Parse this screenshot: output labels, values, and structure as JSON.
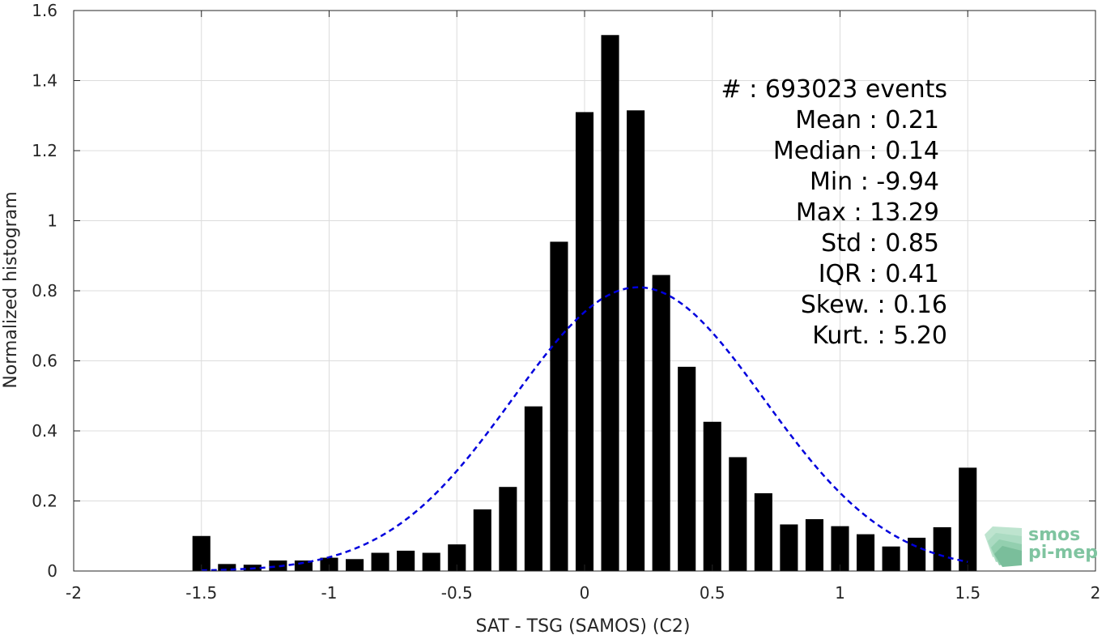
{
  "chart_data": {
    "type": "bar",
    "xlabel": "SAT - TSG (SAMOS) (C2)",
    "ylabel": "Normalized histogram",
    "xlim": [
      -2,
      2
    ],
    "ylim": [
      0,
      1.6
    ],
    "xticks": [
      "-2",
      "-1.5",
      "-1",
      "-0.5",
      "0",
      "0.5",
      "1",
      "1.5",
      "2"
    ],
    "yticks": [
      "0",
      "0.2",
      "0.4",
      "0.6",
      "0.8",
      "1",
      "1.2",
      "1.4",
      "1.6"
    ],
    "grid": true,
    "bin_width": 0.1,
    "bins": {
      "x": [
        -1.5,
        -1.4,
        -1.3,
        -1.2,
        -1.1,
        -1.0,
        -0.9,
        -0.8,
        -0.7,
        -0.6,
        -0.5,
        -0.4,
        -0.3,
        -0.2,
        -0.1,
        0.0,
        0.1,
        0.2,
        0.3,
        0.4,
        0.5,
        0.6,
        0.7,
        0.8,
        0.9,
        1.0,
        1.1,
        1.2,
        1.3,
        1.4,
        1.5
      ],
      "values": [
        0.1,
        0.02,
        0.018,
        0.03,
        0.03,
        0.038,
        0.034,
        0.052,
        0.058,
        0.052,
        0.076,
        0.176,
        0.24,
        0.47,
        0.94,
        1.31,
        1.53,
        1.315,
        0.845,
        0.583,
        0.426,
        0.325,
        0.222,
        0.133,
        0.148,
        0.128,
        0.105,
        0.07,
        0.095,
        0.125,
        0.295
      ]
    },
    "fit_curve": {
      "style": "dashed",
      "color": "#0000dd",
      "mean": 0.21,
      "std": 0.492,
      "peak": 0.81,
      "x_range": [
        -1.5,
        1.5
      ]
    },
    "bar_color": "#000000"
  },
  "stats": {
    "count": "#  : 693023 events",
    "mean": "Mean : 0.21",
    "median": "Median : 0.14",
    "min": "Min : -9.94",
    "max": "Max : 13.29",
    "std": "Std : 0.85",
    "iqr": "IQR : 0.41",
    "skew": "Skew. : 0.16",
    "kurt": "Kurt. : 5.20"
  },
  "logo": {
    "line1": "smos",
    "line2": "pi-mep"
  }
}
